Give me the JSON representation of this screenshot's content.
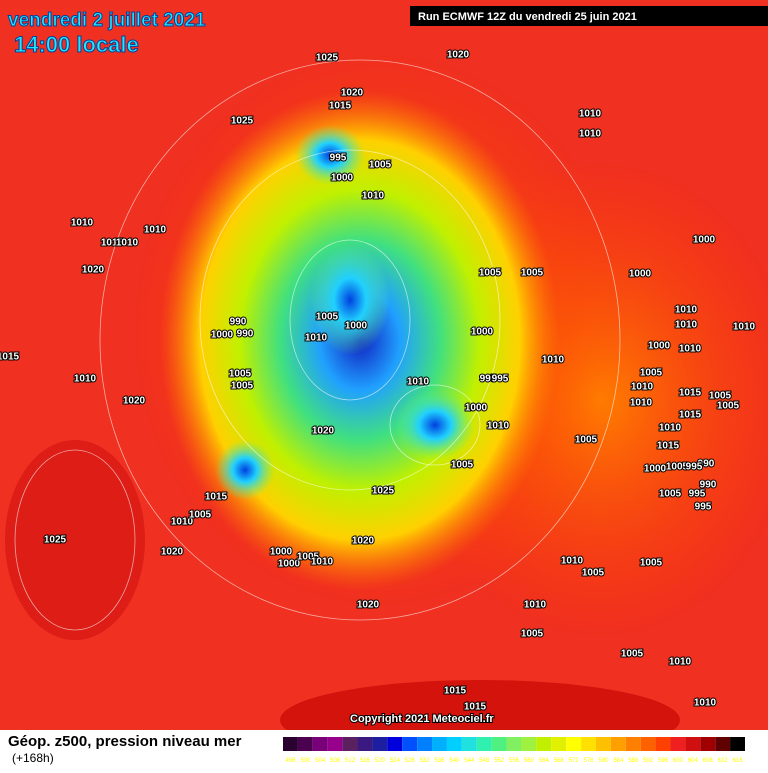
{
  "header": {
    "date": "vendredi 2 juillet 2021",
    "time": "14:00 locale",
    "run": "Run ECMWF 12Z du vendredi 25 juin 2021"
  },
  "footer": {
    "title": "Géop. z500, pression niveau mer",
    "lead": "(+168h)",
    "copyright": "Copyright 2021 Meteociel.fr"
  },
  "legend": {
    "labels": [
      "496",
      "500",
      "504",
      "508",
      "512",
      "516",
      "520",
      "524",
      "528",
      "532",
      "536",
      "540",
      "544",
      "548",
      "552",
      "556",
      "560",
      "564",
      "568",
      "572",
      "576",
      "580",
      "584",
      "588",
      "592",
      "596",
      "600",
      "604",
      "608",
      "612",
      "616"
    ],
    "colors": [
      "#2a0030",
      "#4b0050",
      "#7a007a",
      "#96008c",
      "#5a2060",
      "#3a1a80",
      "#1e1ea0",
      "#0000dc",
      "#0050ff",
      "#0080ff",
      "#00b0ff",
      "#00d0ff",
      "#20e0e0",
      "#30f0b0",
      "#50f080",
      "#80f060",
      "#a0f040",
      "#c0f000",
      "#e0f000",
      "#ffff00",
      "#ffe000",
      "#ffc000",
      "#ffa000",
      "#ff8000",
      "#ff6000",
      "#ff4000",
      "#f02020",
      "#d01010",
      "#a00000",
      "#600000",
      "#000000"
    ]
  },
  "isobars": {
    "labels": [
      "1025",
      "1020",
      "1020",
      "1015",
      "1025",
      "995",
      "1005",
      "1000",
      "1010",
      "1010",
      "1010",
      "1010",
      "1010",
      "1015",
      "1010",
      "1020",
      "1005",
      "1005",
      "1000",
      "1000",
      "1005",
      "1000",
      "990",
      "1000",
      "990",
      "1010",
      "1000",
      "1015",
      "1010",
      "1010",
      "1010",
      "1010",
      "1000",
      "1010",
      "1005",
      "1010",
      "1005",
      "1010",
      "995",
      "995",
      "1005",
      "1010",
      "1015",
      "1005",
      "1005",
      "1010",
      "1020",
      "1000",
      "1015",
      "1010",
      "1020",
      "1005",
      "1010",
      "1015",
      "1000",
      "1005",
      "990",
      "995",
      "1005",
      "1015",
      "1025",
      "1005",
      "995",
      "990",
      "995",
      "1010",
      "1005",
      "1025",
      "1020",
      "1020",
      "1000",
      "1000",
      "1005",
      "1010",
      "1010",
      "1005",
      "1005",
      "1010",
      "1020",
      "1005",
      "1005",
      "1010",
      "1015",
      "1015",
      "1010"
    ]
  }
}
